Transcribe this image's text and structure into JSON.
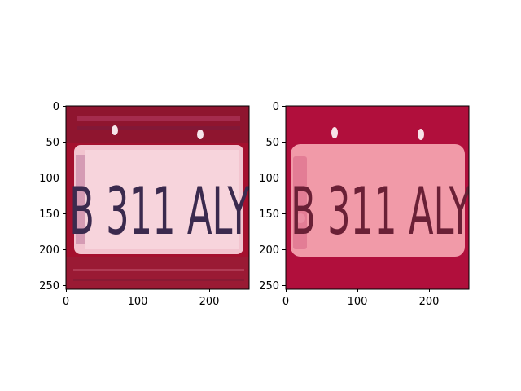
{
  "figure": {
    "panels": [
      {
        "image": {
          "plate_text": "B 311 ALY",
          "plate_sticker_text": "",
          "background_color": "#a4102e",
          "plate_color": "#f2c4cf",
          "text_color": "#3b2a4e"
        },
        "axes": {
          "xlim": [
            0,
            255
          ],
          "ylim": [
            255,
            0
          ],
          "xticks": [
            "0",
            "100",
            "200"
          ],
          "yticks": [
            "0",
            "50",
            "100",
            "150",
            "200",
            "250"
          ]
        }
      },
      {
        "image": {
          "plate_text": "B 311 ALY",
          "plate_sticker_text": "",
          "background_color": "#b10f3c",
          "plate_color": "#f19aa8",
          "text_color": "#6a2036"
        },
        "axes": {
          "xlim": [
            0,
            255
          ],
          "ylim": [
            255,
            0
          ],
          "xticks": [
            "0",
            "100",
            "200"
          ],
          "yticks": [
            "0",
            "50",
            "100",
            "150",
            "200",
            "250"
          ]
        }
      }
    ]
  }
}
